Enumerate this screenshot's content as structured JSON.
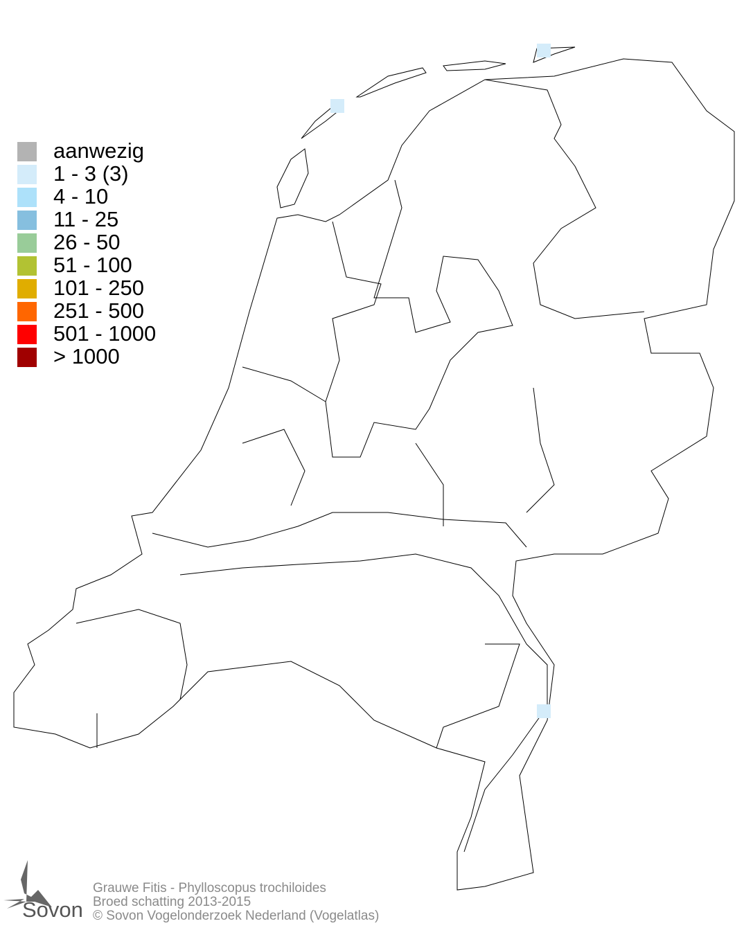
{
  "legend": {
    "items": [
      {
        "label": "aanwezig",
        "color": "#b3b3b3"
      },
      {
        "label": "1 - 3 (3)",
        "color": "#d4ecfa"
      },
      {
        "label": "4 - 10",
        "color": "#ade1fa"
      },
      {
        "label": "11 - 25",
        "color": "#86bfdf"
      },
      {
        "label": "26 - 50",
        "color": "#99cc99"
      },
      {
        "label": "51 - 100",
        "color": "#b2c233"
      },
      {
        "label": "101 - 250",
        "color": "#e0ad00"
      },
      {
        "label": "251 - 500",
        "color": "#ff6600"
      },
      {
        "label": "501 - 1000",
        "color": "#ff0000"
      },
      {
        "label": "> 1000",
        "color": "#a00000"
      }
    ]
  },
  "map": {
    "occupied_cell_color": "#d4ecfa",
    "occupied_cells_count": 3
  },
  "footer": {
    "species": "Grauwe Fitis - Phylloscopus trochiloides",
    "subtitle": "Broed schatting 2013-2015",
    "copyright": "© Sovon Vogelonderzoek Nederland (Vogelatlas)"
  },
  "logo": {
    "text": "Sovon"
  }
}
